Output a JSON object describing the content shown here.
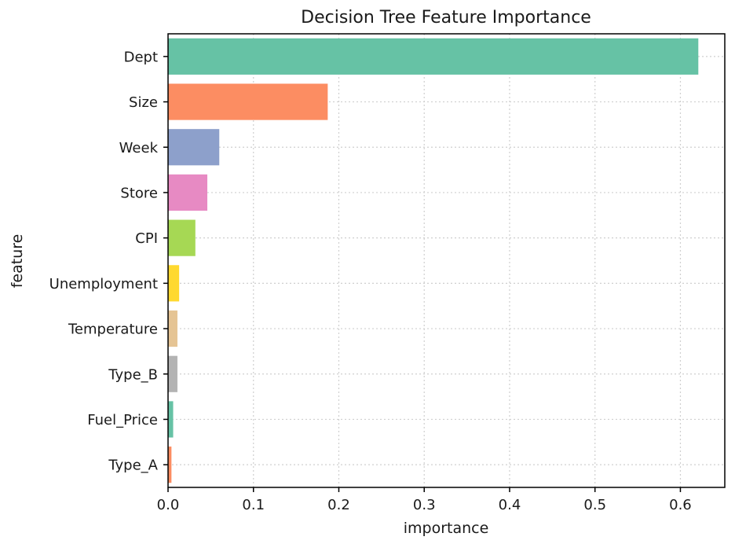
{
  "chart_data": {
    "type": "bar",
    "orientation": "horizontal",
    "title": "Decision Tree Feature Importance",
    "xlabel": "importance",
    "ylabel": "feature",
    "categories": [
      "Dept",
      "Size",
      "Week",
      "Store",
      "CPI",
      "Unemployment",
      "Temperature",
      "Type_B",
      "Fuel_Price",
      "Type_A"
    ],
    "values": [
      0.621,
      0.187,
      0.06,
      0.046,
      0.032,
      0.013,
      0.011,
      0.011,
      0.006,
      0.004
    ],
    "colors": [
      "#66c2a5",
      "#fc8d62",
      "#8da0cb",
      "#e78ac3",
      "#a6d854",
      "#ffd92f",
      "#e5c494",
      "#b3b3b3",
      "#66c2a5",
      "#fc8d62"
    ],
    "xticks": [
      "0.0",
      "0.1",
      "0.2",
      "0.3",
      "0.4",
      "0.5",
      "0.6"
    ],
    "xlim": [
      0,
      0.652
    ],
    "grid": true
  }
}
